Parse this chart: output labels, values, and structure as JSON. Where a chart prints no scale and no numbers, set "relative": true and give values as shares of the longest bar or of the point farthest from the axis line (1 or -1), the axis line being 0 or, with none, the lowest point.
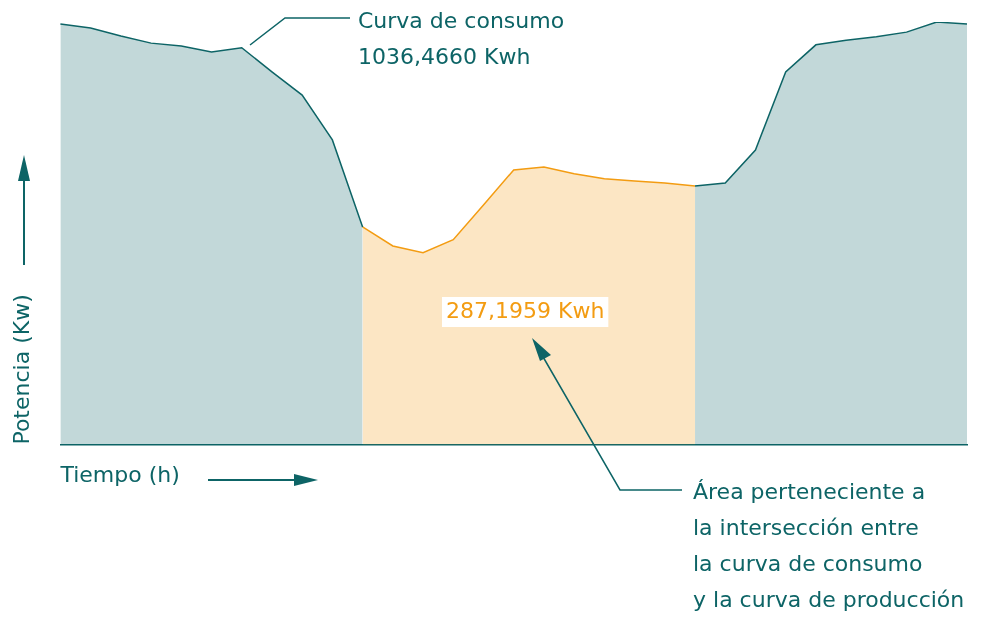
{
  "chart_data": {
    "type": "area",
    "relative": true,
    "xlabel": "Tiempo (h)",
    "ylabel": "Potencia (Kw)",
    "legend": false,
    "categories": [
      null,
      null,
      null,
      null,
      null,
      null,
      null,
      null,
      null,
      null,
      null,
      null,
      null,
      null,
      null,
      null,
      null,
      null,
      null,
      null,
      null,
      null,
      null,
      null,
      null,
      null,
      null,
      null,
      null,
      null,
      null
    ],
    "series": [
      {
        "color": "#0d6466",
        "values": [
          0.995,
          0.986,
          0.967,
          0.95,
          0.943,
          0.929,
          0.939,
          0.882,
          0.827,
          0.721,
          0.515,
          null,
          null,
          null,
          null,
          null,
          null,
          null,
          null,
          null,
          null,
          null,
          null,
          null,
          null,
          null,
          null,
          null,
          null,
          null,
          null
        ]
      },
      {
        "color": "#f39c12",
        "values": [
          null,
          null,
          null,
          null,
          null,
          null,
          null,
          null,
          null,
          null,
          0.515,
          0.47,
          0.454,
          0.485,
          0.567,
          0.65,
          0.657,
          0.641,
          0.629,
          0.624,
          0.619,
          0.612,
          null,
          null,
          null,
          null,
          null,
          null,
          null,
          null,
          null
        ]
      },
      {
        "color": "#0d6466",
        "values": [
          null,
          null,
          null,
          null,
          null,
          null,
          null,
          null,
          null,
          null,
          null,
          null,
          null,
          null,
          null,
          null,
          null,
          null,
          null,
          null,
          null,
          0.612,
          0.619,
          0.697,
          0.882,
          0.946,
          0.957,
          0.965,
          0.976,
          1.0,
          0.995
        ]
      }
    ],
    "annotations": [
      "Curva de consumo\n1036,4660 Kwh",
      "287,1959 Kwh",
      "Área perteneciente a\nla intersección entre\nla curva de consumo\ny la curva de producción"
    ]
  }
}
